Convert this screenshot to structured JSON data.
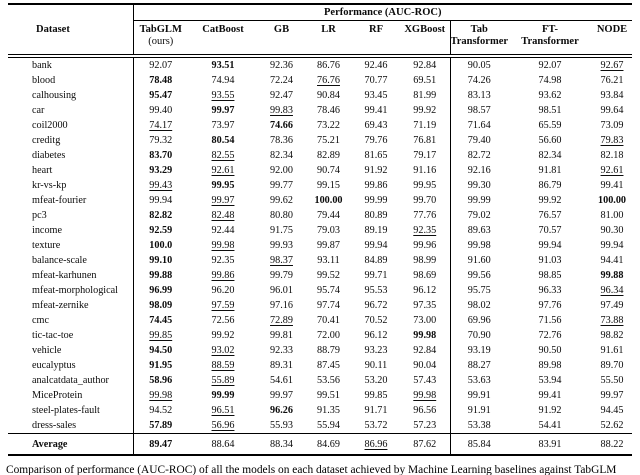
{
  "page": {
    "caption": "Comparison of performance (AUC-ROC) of all the models on each dataset achieved by Machine Learning baselines against TabGLM"
  },
  "table": {
    "dataset_header": "Dataset",
    "group_header": "Performance (AUC-ROC)",
    "columns": [
      {
        "label": "TabGLM",
        "sub": "(ours)",
        "sub_bold": false
      },
      {
        "label": "CatBoost",
        "sub": "",
        "sub_bold": false
      },
      {
        "label": "GB",
        "sub": "",
        "sub_bold": false
      },
      {
        "label": "LR",
        "sub": "",
        "sub_bold": false
      },
      {
        "label": "RF",
        "sub": "",
        "sub_bold": false
      },
      {
        "label": "XGBoost",
        "sub": "",
        "sub_bold": false
      },
      {
        "label": "Tab",
        "sub": "Transformer",
        "sub_bold": true
      },
      {
        "label": "FT-",
        "sub": "Transformer",
        "sub_bold": true
      },
      {
        "label": "NODE",
        "sub": "",
        "sub_bold": false
      }
    ],
    "rows": [
      {
        "dataset": "bank",
        "values": [
          "92.07",
          "93.51",
          "92.36",
          "86.76",
          "92.46",
          "92.84",
          "90.05",
          "92.07",
          "92.67"
        ],
        "bold": [
          1
        ],
        "underline": [
          8
        ]
      },
      {
        "dataset": "blood",
        "values": [
          "78.48",
          "74.94",
          "72.24",
          "76.76",
          "70.77",
          "69.51",
          "74.26",
          "74.98",
          "76.21"
        ],
        "bold": [
          0
        ],
        "underline": [
          3
        ]
      },
      {
        "dataset": "calhousing",
        "values": [
          "95.47",
          "93.55",
          "92.47",
          "90.84",
          "93.45",
          "81.99",
          "83.13",
          "93.62",
          "93.84"
        ],
        "bold": [
          0
        ],
        "underline": [
          1
        ]
      },
      {
        "dataset": "car",
        "values": [
          "99.40",
          "99.97",
          "99.83",
          "78.46",
          "99.41",
          "99.92",
          "98.57",
          "98.51",
          "99.64"
        ],
        "bold": [
          1
        ],
        "underline": [
          2
        ]
      },
      {
        "dataset": "coil2000",
        "values": [
          "74.17",
          "73.97",
          "74.66",
          "73.22",
          "69.43",
          "71.19",
          "71.64",
          "65.59",
          "73.09"
        ],
        "bold": [
          2
        ],
        "underline": [
          0
        ]
      },
      {
        "dataset": "creditg",
        "values": [
          "79.32",
          "80.54",
          "78.36",
          "75.21",
          "79.76",
          "76.81",
          "79.40",
          "56.60",
          "79.83"
        ],
        "bold": [
          1
        ],
        "underline": [
          8
        ]
      },
      {
        "dataset": "diabetes",
        "values": [
          "83.70",
          "82.55",
          "82.34",
          "82.89",
          "81.65",
          "79.17",
          "82.72",
          "82.34",
          "82.18"
        ],
        "bold": [
          0
        ],
        "underline": [
          1
        ]
      },
      {
        "dataset": "heart",
        "values": [
          "93.29",
          "92.61",
          "92.00",
          "90.74",
          "91.92",
          "91.16",
          "92.16",
          "91.81",
          "92.61"
        ],
        "bold": [
          0
        ],
        "underline": [
          1,
          8
        ]
      },
      {
        "dataset": "kr-vs-kp",
        "values": [
          "99.43",
          "99.95",
          "99.77",
          "99.15",
          "99.86",
          "99.95",
          "99.30",
          "86.79",
          "99.41"
        ],
        "bold": [
          1
        ],
        "underline": [
          0
        ]
      },
      {
        "dataset": "mfeat-fourier",
        "values": [
          "99.94",
          "99.97",
          "99.62",
          "100.00",
          "99.99",
          "99.70",
          "99.99",
          "99.92",
          "100.00"
        ],
        "bold": [
          3,
          8
        ],
        "underline": [
          1
        ]
      },
      {
        "dataset": "pc3",
        "values": [
          "82.82",
          "82.48",
          "80.80",
          "79.44",
          "80.89",
          "77.76",
          "79.02",
          "76.57",
          "81.00"
        ],
        "bold": [
          0
        ],
        "underline": [
          1
        ]
      },
      {
        "dataset": "income",
        "values": [
          "92.59",
          "92.44",
          "91.75",
          "79.03",
          "89.19",
          "92.35",
          "89.63",
          "70.57",
          "90.30"
        ],
        "bold": [
          0
        ],
        "underline": [
          5
        ]
      },
      {
        "dataset": "texture",
        "values": [
          "100.0",
          "99.98",
          "99.93",
          "99.87",
          "99.94",
          "99.96",
          "99.98",
          "99.94",
          "99.94"
        ],
        "bold": [
          0
        ],
        "underline": [
          1
        ]
      },
      {
        "dataset": "balance-scale",
        "values": [
          "99.10",
          "92.35",
          "98.37",
          "93.11",
          "84.89",
          "98.99",
          "91.60",
          "91.03",
          "94.41"
        ],
        "bold": [
          0
        ],
        "underline": [
          2
        ]
      },
      {
        "dataset": "mfeat-karhunen",
        "values": [
          "99.88",
          "99.86",
          "99.79",
          "99.52",
          "99.71",
          "98.69",
          "99.56",
          "98.85",
          "99.88"
        ],
        "bold": [
          0,
          8
        ],
        "underline": [
          1
        ]
      },
      {
        "dataset": "mfeat-morphological",
        "values": [
          "96.99",
          "96.20",
          "96.01",
          "95.74",
          "95.53",
          "96.12",
          "95.75",
          "96.33",
          "96.34"
        ],
        "bold": [
          0
        ],
        "underline": [
          8
        ]
      },
      {
        "dataset": "mfeat-zernike",
        "values": [
          "98.09",
          "97.59",
          "97.16",
          "97.74",
          "96.72",
          "97.35",
          "98.02",
          "97.76",
          "97.49"
        ],
        "bold": [
          0
        ],
        "underline": [
          1
        ]
      },
      {
        "dataset": "cmc",
        "values": [
          "74.45",
          "72.56",
          "72.89",
          "70.41",
          "70.52",
          "73.00",
          "69.96",
          "71.56",
          "73.88"
        ],
        "bold": [
          0
        ],
        "underline": [
          2,
          8
        ]
      },
      {
        "dataset": "tic-tac-toe",
        "values": [
          "99.85",
          "99.92",
          "99.81",
          "72.00",
          "96.12",
          "99.98",
          "70.90",
          "72.76",
          "98.82"
        ],
        "bold": [
          5
        ],
        "underline": [
          0
        ]
      },
      {
        "dataset": "vehicle",
        "values": [
          "94.50",
          "93.02",
          "92.33",
          "88.79",
          "93.23",
          "92.84",
          "93.19",
          "90.50",
          "91.61"
        ],
        "bold": [
          0
        ],
        "underline": [
          1
        ]
      },
      {
        "dataset": "eucalyptus",
        "values": [
          "91.95",
          "88.59",
          "89.31",
          "87.45",
          "90.11",
          "90.04",
          "88.27",
          "89.98",
          "89.70"
        ],
        "bold": [
          0
        ],
        "underline": [
          1
        ]
      },
      {
        "dataset": "analcatdata_author",
        "values": [
          "58.96",
          "55.89",
          "54.61",
          "53.56",
          "53.20",
          "57.43",
          "53.63",
          "53.94",
          "55.50"
        ],
        "bold": [
          0
        ],
        "underline": [
          1
        ]
      },
      {
        "dataset": "MiceProtein",
        "values": [
          "99.98",
          "99.99",
          "99.97",
          "99.51",
          "99.85",
          "99.98",
          "99.91",
          "99.41",
          "99.97"
        ],
        "bold": [
          1
        ],
        "underline": [
          0,
          5
        ]
      },
      {
        "dataset": "steel-plates-fault",
        "values": [
          "94.52",
          "96.51",
          "96.26",
          "91.35",
          "91.71",
          "96.56",
          "91.91",
          "91.92",
          "94.45"
        ],
        "bold": [
          2
        ],
        "underline": [
          1
        ]
      },
      {
        "dataset": "dress-sales",
        "values": [
          "57.89",
          "56.96",
          "55.93",
          "55.94",
          "53.72",
          "57.23",
          "53.38",
          "54.41",
          "52.62"
        ],
        "bold": [
          0
        ],
        "underline": [
          1
        ]
      }
    ],
    "average_row": {
      "dataset": "Average",
      "values": [
        "89.47",
        "88.64",
        "88.34",
        "84.69",
        "86.96",
        "87.62",
        "85.84",
        "83.91",
        "88.22"
      ],
      "bold": [
        0
      ],
      "underline": [
        4
      ]
    }
  }
}
